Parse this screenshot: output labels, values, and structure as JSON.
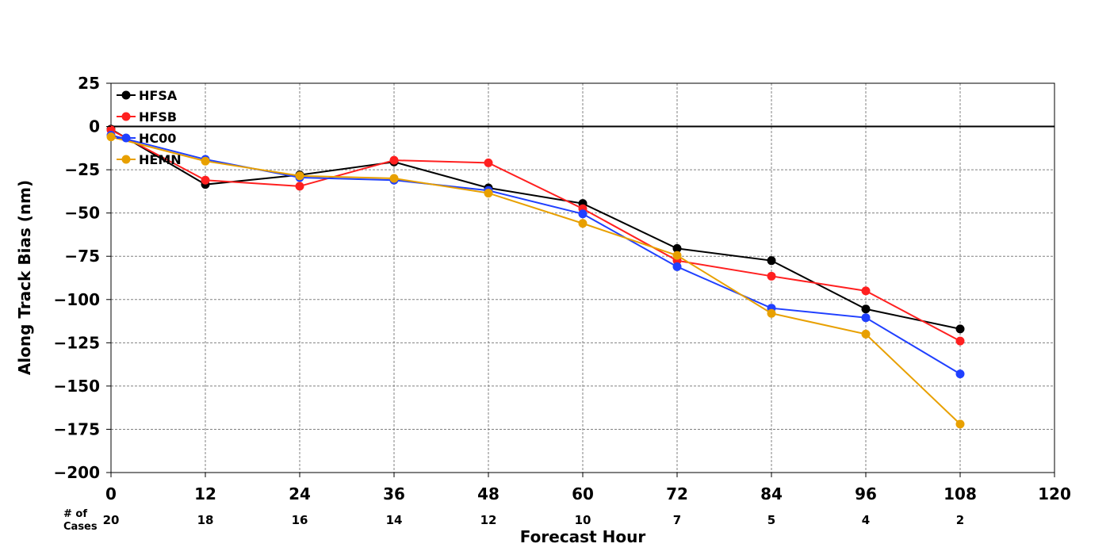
{
  "chart_data": {
    "type": "line",
    "xlabel": "Forecast Hour",
    "ylabel": "Along Track Bias (nm)",
    "xlim": [
      0,
      120
    ],
    "ylim": [
      -200,
      25
    ],
    "xticks": [
      0,
      12,
      24,
      36,
      48,
      60,
      72,
      84,
      96,
      108,
      120
    ],
    "yticks": [
      25,
      0,
      -25,
      -50,
      -75,
      -100,
      -125,
      -150,
      -175,
      -200
    ],
    "grid": true,
    "zero_line": true,
    "legend_position": "top-left",
    "x": [
      0,
      12,
      24,
      36,
      48,
      60,
      72,
      84,
      96,
      108
    ],
    "series": [
      {
        "name": "HFSA",
        "color": "#000000",
        "values": [
          -1.5,
          -33.5,
          -28,
          -20.5,
          -35.5,
          -44.5,
          -70.5,
          -77.5,
          -105.5,
          -117
        ]
      },
      {
        "name": "HFSB",
        "color": "#ff2020",
        "values": [
          -2,
          -31,
          -34.5,
          -19.5,
          -21,
          -47.5,
          -77.5,
          -86.5,
          -95,
          -124
        ]
      },
      {
        "name": "HC00",
        "color": "#2040ff",
        "values": [
          -5,
          -19,
          -29.5,
          -31,
          -37,
          -50.5,
          -81,
          -105,
          -110.5,
          -143
        ]
      },
      {
        "name": "HEMN",
        "color": "#e8a000",
        "values": [
          -6,
          -20,
          -28.5,
          -30,
          -38.5,
          -56,
          -74.5,
          -108,
          -120,
          -172
        ]
      }
    ],
    "cases": {
      "title_line1": "# of",
      "title_line2": "Cases",
      "x": [
        0,
        12,
        24,
        36,
        48,
        60,
        72,
        84,
        96,
        108
      ],
      "counts": [
        "20",
        "18",
        "16",
        "14",
        "12",
        "10",
        "7",
        "5",
        "4",
        "2"
      ]
    }
  }
}
